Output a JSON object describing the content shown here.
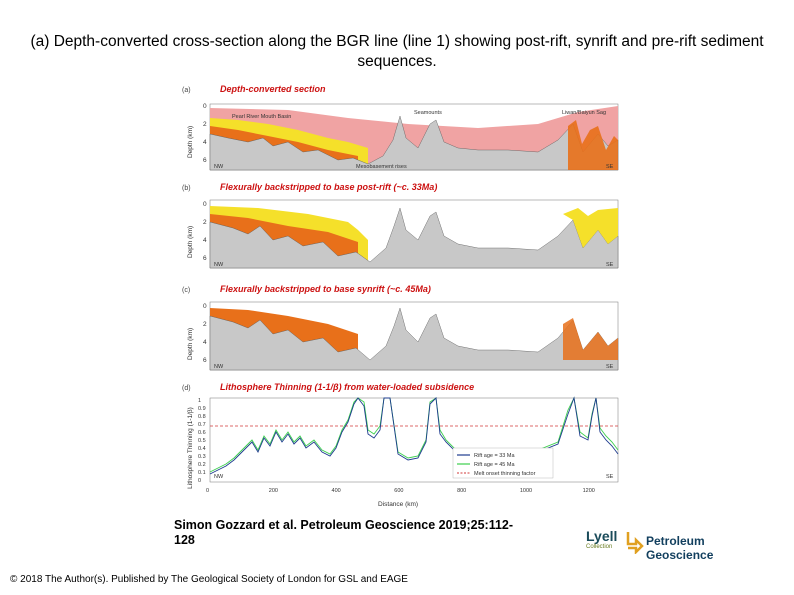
{
  "title": "(a) Depth-converted cross-section along the BGR line (line 1) showing post-rift, synrift and pre-rift sediment sequences.",
  "figure": {
    "panels": [
      {
        "label": "(a)",
        "title": "Depth-converted section",
        "ylabel": "Depth (km)",
        "yticks": [
          "0",
          "2",
          "4",
          "6"
        ],
        "nw": "NW",
        "se": "SE",
        "annotations": [
          "Pearl River Mouth Basin",
          "Seamounts",
          "Liwan/Baiyun Sag",
          "Mesobasement rises"
        ]
      },
      {
        "label": "(b)",
        "title": "Flexurally backstripped to base post-rift (~c. 33Ma)",
        "ylabel": "Depth (km)",
        "yticks": [
          "0",
          "2",
          "4",
          "6"
        ],
        "nw": "NW",
        "se": "SE"
      },
      {
        "label": "(c)",
        "title": "Flexurally backstripped to base synrift (~c. 45Ma)",
        "ylabel": "Depth (km)",
        "yticks": [
          "0",
          "2",
          "4",
          "6"
        ],
        "nw": "NW",
        "se": "SE"
      },
      {
        "label": "(d)",
        "title": "Lithosphere Thinning (1-1/β) from water-loaded subsidence",
        "ylabel": "Lithosphere Thinning (1-1/β)",
        "yticks": [
          "0",
          "0.1",
          "0.2",
          "0.3",
          "0.4",
          "0.5",
          "0.6",
          "0.7",
          "0.8",
          "0.9",
          "1"
        ],
        "nw": "NW",
        "se": "SE",
        "xticks": [
          "0",
          "200",
          "400",
          "600",
          "800",
          "1000",
          "1200"
        ],
        "xlabel": "Distance (km)",
        "legend": [
          "Rift age = 33 Ma",
          "Rift age = 45 Ma",
          "Melt onset thinning factor"
        ]
      }
    ],
    "colors": {
      "postrift": "#f0a3a3",
      "synrift": "#f5e02a",
      "prerift": "#e8701a",
      "basement": "#c8c8c8",
      "line33": "#1f3c8f",
      "line45": "#3ccf4e",
      "melt": "#d23a3a"
    }
  },
  "citation": "Simon Gozzard et al. Petroleum Geoscience 2019;25:112-128",
  "copyright": "© 2018 The Author(s). Published by The Geological Society of London for GSL and EAGE",
  "logo": {
    "left": "Lyell",
    "left_sub": "Collection",
    "right": "Petroleum Geoscience"
  }
}
